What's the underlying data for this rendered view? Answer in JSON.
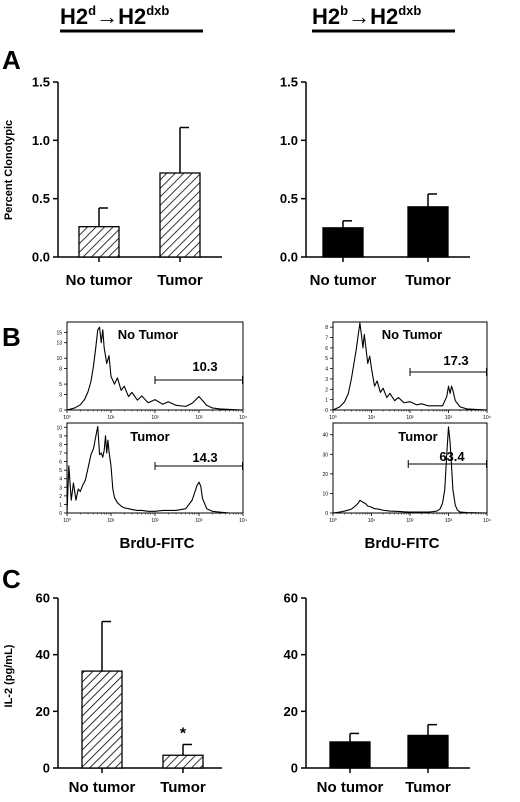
{
  "headers": {
    "left": {
      "base": "H2",
      "sup1": "d",
      "arrow": "→",
      "base2": "H2",
      "sup2": "dxb"
    },
    "right": {
      "base": "H2",
      "sup1": "b",
      "arrow": "→",
      "base2": "H2",
      "sup2": "dxb"
    }
  },
  "panel_letters": {
    "a": "A",
    "b": "B",
    "c": "C"
  },
  "colors": {
    "hatched_bar_fill": "hatch-diagonal",
    "solid_bar_fill": "#000000"
  },
  "chart_data": [
    {
      "id": "A-left",
      "type": "bar",
      "categories": [
        "No tumor",
        "Tumor"
      ],
      "values": [
        0.26,
        0.72
      ],
      "errors": [
        0.16,
        0.39
      ],
      "ylim": [
        0,
        1.5
      ],
      "yticks": [
        "0.0",
        "0.5",
        "1.0",
        "1.5"
      ],
      "ylabel": "Percent Clonotypic",
      "fill": "hatched"
    },
    {
      "id": "A-right",
      "type": "bar",
      "categories": [
        "No tumor",
        "Tumor"
      ],
      "values": [
        0.25,
        0.43
      ],
      "errors": [
        0.06,
        0.11
      ],
      "ylim": [
        0,
        1.5
      ],
      "yticks": [
        "0.0",
        "0.5",
        "1.0",
        "1.5"
      ],
      "ylabel": "",
      "fill": "solid"
    },
    {
      "id": "C-left",
      "type": "bar",
      "categories": [
        "No tumor",
        "Tumor"
      ],
      "values": [
        34.2,
        4.5
      ],
      "errors": [
        17.5,
        3.8
      ],
      "ylim": [
        0,
        60
      ],
      "yticks": [
        "0",
        "20",
        "40",
        "60"
      ],
      "ylabel": "IL-2 (pg/mL)",
      "fill": "hatched",
      "annotations": [
        {
          "category": "Tumor",
          "text": "*"
        }
      ]
    },
    {
      "id": "C-right",
      "type": "bar",
      "categories": [
        "No tumor",
        "Tumor"
      ],
      "values": [
        9.2,
        11.5
      ],
      "errors": [
        3.0,
        3.8
      ],
      "ylim": [
        0,
        60
      ],
      "yticks": [
        "0",
        "20",
        "40",
        "60"
      ],
      "ylabel": "",
      "fill": "solid"
    },
    {
      "id": "B-left-top",
      "type": "line",
      "label": "No Tumor",
      "gate_value": "10.3",
      "xscale": "log",
      "xlim": [
        1,
        10000
      ],
      "xticks": [
        "10⁰",
        "10¹",
        "10²",
        "10³",
        "10⁴"
      ],
      "yticks": [
        "0",
        "3",
        "5",
        "8",
        "10",
        "13",
        "15"
      ],
      "ylim": [
        0,
        17
      ],
      "gate_range": [
        100,
        10000
      ],
      "x": [
        1,
        1.5,
        2,
        2.5,
        3,
        3.5,
        4,
        4.5,
        5,
        5.5,
        6,
        6.5,
        7,
        8,
        9,
        10,
        12,
        14,
        17,
        20,
        25,
        30,
        40,
        50,
        70,
        100,
        150,
        200,
        300,
        500,
        700,
        1000,
        1500,
        2000,
        3000,
        5000,
        10000
      ],
      "y": [
        0,
        0.4,
        1.0,
        2.0,
        3.5,
        5.5,
        8.5,
        12,
        15.5,
        16,
        13,
        15.5,
        12,
        9,
        10.5,
        6.5,
        5,
        6.2,
        3.8,
        4.6,
        2.6,
        3.4,
        1.9,
        2.7,
        1.4,
        2.0,
        1.1,
        1.6,
        0.9,
        0.7,
        1.3,
        2.6,
        0.9,
        0.4,
        0.2,
        0.1,
        0
      ]
    },
    {
      "id": "B-left-bottom",
      "type": "line",
      "label": "Tumor",
      "gate_value": "14.3",
      "xscale": "log",
      "xlim": [
        1,
        10000
      ],
      "xticks": [
        "10⁰",
        "10¹",
        "10²",
        "10³",
        "10⁴"
      ],
      "yticks": [
        "0",
        "1",
        "2",
        "3",
        "4",
        "5",
        "6",
        "7",
        "8",
        "9",
        "10"
      ],
      "ylim": [
        0,
        10.5
      ],
      "gate_range": [
        100,
        10000
      ],
      "x": [
        1,
        1.1,
        1.25,
        1.4,
        1.6,
        1.8,
        2,
        2.3,
        2.6,
        3,
        3.5,
        4,
        4.5,
        5,
        5.5,
        6,
        6.5,
        7,
        7.5,
        8,
        8.5,
        9,
        10,
        11,
        12,
        14,
        17,
        20,
        25,
        30,
        40,
        50,
        70,
        100,
        150,
        200,
        300,
        500,
        700,
        900,
        1000,
        1100,
        1200,
        1500,
        2000,
        3000,
        5000,
        10000
      ],
      "y": [
        0,
        5.5,
        1.5,
        3.5,
        1.5,
        2.8,
        2.5,
        3.3,
        3.8,
        5.2,
        6.8,
        7.5,
        8.9,
        10.1,
        6.8,
        7.0,
        6.5,
        7.3,
        9.0,
        7.0,
        8.5,
        7.2,
        5.5,
        2.8,
        1.8,
        1.2,
        0.8,
        0.6,
        0.5,
        0.4,
        0.3,
        0.3,
        0.2,
        0.2,
        0.3,
        0.3,
        0.3,
        0.5,
        1.5,
        3.2,
        3.6,
        3.1,
        1.7,
        0.5,
        0.2,
        0.1,
        0,
        0
      ]
    },
    {
      "id": "B-right-top",
      "type": "line",
      "label": "No Tumor",
      "gate_value": "17.3",
      "xscale": "log",
      "xlim": [
        1,
        10000
      ],
      "xticks": [
        "10⁰",
        "10¹",
        "10²",
        "10³",
        "10⁴"
      ],
      "yticks": [
        "0",
        "1",
        "2",
        "3",
        "4",
        "5",
        "6",
        "7",
        "8"
      ],
      "ylim": [
        0,
        8.5
      ],
      "gate_range": [
        100,
        10000
      ],
      "x": [
        1,
        1.5,
        2,
        2.5,
        3,
        3.5,
        4,
        4.5,
        5,
        5.5,
        6,
        6.5,
        7,
        8,
        9,
        10,
        12,
        14,
        17,
        20,
        25,
        30,
        40,
        50,
        70,
        100,
        150,
        200,
        300,
        500,
        700,
        900,
        1000,
        1100,
        1200,
        1300,
        1500,
        2000,
        3000,
        10000
      ],
      "y": [
        0,
        0.3,
        0.8,
        1.6,
        3.0,
        4.5,
        5.8,
        7.2,
        8.4,
        7.2,
        6.0,
        7.3,
        6.3,
        4.5,
        5.2,
        4.0,
        2.3,
        2.8,
        1.7,
        2.1,
        1.2,
        1.6,
        0.9,
        1.2,
        0.7,
        0.8,
        0.5,
        0.6,
        0.4,
        0.4,
        0.4,
        1.3,
        2.3,
        1.6,
        2.3,
        1.9,
        0.9,
        0.3,
        0.1,
        0
      ]
    },
    {
      "id": "B-right-bottom",
      "type": "line",
      "label": "Tumor",
      "gate_value": "63.4",
      "xscale": "log",
      "xlim": [
        1,
        10000
      ],
      "xticks": [
        "10⁰",
        "10¹",
        "10²",
        "10³",
        "10⁴"
      ],
      "yticks": [
        "0",
        "10",
        "20",
        "30",
        "40"
      ],
      "ylim": [
        0,
        46
      ],
      "gate_range": [
        90,
        10000
      ],
      "x": [
        1,
        1.5,
        2,
        2.5,
        3,
        3.5,
        4,
        4.5,
        5,
        6,
        7,
        8,
        10,
        12,
        15,
        20,
        30,
        50,
        70,
        100,
        150,
        200,
        300,
        400,
        500,
        600,
        700,
        800,
        900,
        1000,
        1100,
        1200,
        1300,
        1500,
        1700,
        2000,
        3000,
        10000
      ],
      "y": [
        0,
        0.5,
        1.0,
        1.5,
        2.0,
        3.0,
        4.0,
        5.0,
        6.5,
        5.5,
        4.8,
        3.5,
        3.0,
        2.2,
        2.0,
        1.4,
        1.0,
        0.8,
        0.6,
        0.5,
        0.5,
        0.5,
        0.5,
        0.7,
        1.0,
        2.0,
        5.0,
        12,
        30,
        44,
        36,
        24,
        12,
        4,
        1.5,
        0.5,
        0.2,
        0
      ]
    }
  ],
  "b_xaxis_label": "BrdU-FITC"
}
